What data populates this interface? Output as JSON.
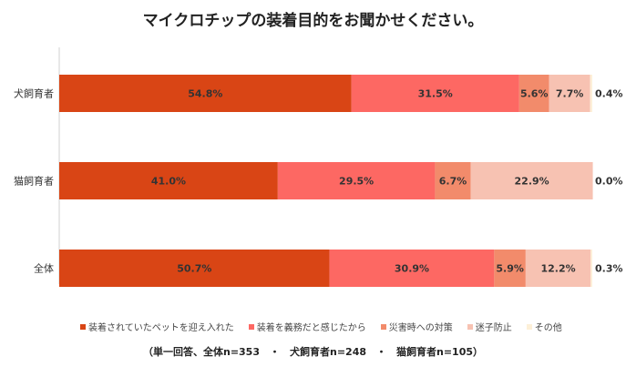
{
  "chart_data": {
    "type": "bar",
    "orientation": "horizontal",
    "stacked": true,
    "percent": true,
    "title": "マイクロチップの装着目的をお聞かせください。",
    "categories": [
      "犬飼育者",
      "猫飼育者",
      "全体"
    ],
    "series": [
      {
        "name": "装着されていたペットを迎え入れた",
        "values": [
          54.8,
          41.0,
          50.7
        ],
        "labels": [
          "54.8%",
          "41.0%",
          "50.7%"
        ],
        "color": "#d94515"
      },
      {
        "name": "装着を義務だと感じたから",
        "values": [
          31.5,
          29.5,
          30.9
        ],
        "labels": [
          "31.5%",
          "29.5%",
          "30.9%"
        ],
        "color": "#fd6863"
      },
      {
        "name": "災害時への対策",
        "values": [
          5.6,
          6.7,
          5.9
        ],
        "labels": [
          "5.6%",
          "6.7%",
          "5.9%"
        ],
        "color": "#f28b6b"
      },
      {
        "name": "迷子防止",
        "values": [
          7.7,
          22.9,
          12.2
        ],
        "labels": [
          "7.7%",
          "22.9%",
          "12.2%"
        ],
        "color": "#f7c2b2"
      },
      {
        "name": "その他",
        "values": [
          0.4,
          0.0,
          0.3
        ],
        "labels": [
          "0.4%",
          "0.0%",
          "0.3%"
        ],
        "color": "#fdf0d8"
      }
    ],
    "xlim": [
      0,
      100
    ],
    "grid": false,
    "legend_position": "bottom"
  },
  "footnote": "（単一回答、全体n=353　・　犬飼育者n=248　・　猫飼育者n=105）"
}
